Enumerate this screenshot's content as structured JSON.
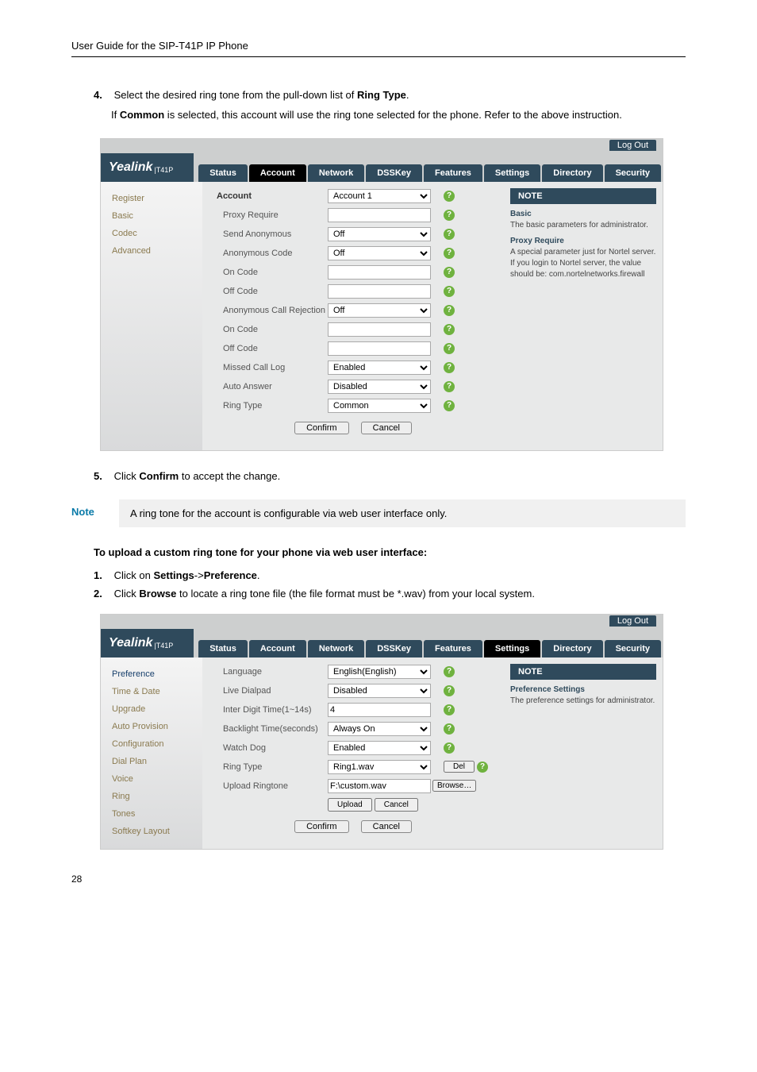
{
  "header": {
    "title": "User Guide for the SIP-T41P IP Phone"
  },
  "steps_a": {
    "s4_num": "4.",
    "s4": "Select the desired ring tone from the pull-down list of ",
    "s4_bold": "Ring Type",
    "s4_end": ".",
    "s4_sub1": "If ",
    "s4_sub1_b": "Common",
    "s4_sub1_end": " is selected, this account will use the ring tone selected for the phone. Refer to the above instruction."
  },
  "ss1": {
    "logout": "Log Out",
    "brand": "Yealink",
    "model": "T41P",
    "tabs": {
      "status": "Status",
      "account": "Account",
      "network": "Network",
      "dsskey": "DSSKey",
      "features": "Features",
      "settings": "Settings",
      "directory": "Directory",
      "security": "Security"
    },
    "side": {
      "register": "Register",
      "basic": "Basic",
      "codec": "Codec",
      "advanced": "Advanced"
    },
    "rows": {
      "account_lbl": "Account",
      "account_val": "Account 1",
      "proxy": "Proxy Require",
      "sendanon": "Send Anonymous",
      "off": "Off",
      "anoncode": "Anonymous Code",
      "oncode": "On Code",
      "offcode": "Off Code",
      "anonrej": "Anonymous Call Rejection",
      "missed": "Missed Call Log",
      "enabled": "Enabled",
      "autoans": "Auto Answer",
      "disabled": "Disabled",
      "ringtype": "Ring Type",
      "common": "Common"
    },
    "btns": {
      "confirm": "Confirm",
      "cancel": "Cancel"
    },
    "note": {
      "hd": "NOTE",
      "basic_t": "Basic",
      "basic_b": "The basic parameters for administrator.",
      "proxy_t": "Proxy Require",
      "proxy_b": "A special parameter just for Nortel server. If you login to Nortel server, the value should be: com.nortelnetworks.firewall"
    }
  },
  "steps_b": {
    "s5_num": "5.",
    "s5a": "Click ",
    "s5b": "Confirm",
    "s5c": " to accept the change."
  },
  "notebox": {
    "label": "Note",
    "text": "A ring tone for the account is configurable via web user interface only."
  },
  "upload_h": "To upload a custom ring tone for your phone via web user interface:",
  "steps_c": {
    "s1_num": "1.",
    "s1a": "Click on ",
    "s1b": "Settings",
    "s1c": "->",
    "s1d": "Preference",
    "s1e": ".",
    "s2_num": "2.",
    "s2a": "Click ",
    "s2b": "Browse",
    "s2c": " to locate a ring tone file (the file format must be *.wav) from your local system."
  },
  "ss2": {
    "side": {
      "pref": "Preference",
      "time": "Time & Date",
      "upgrade": "Upgrade",
      "autoprov": "Auto Provision",
      "config": "Configuration",
      "dialplan": "Dial Plan",
      "voice": "Voice",
      "ring": "Ring",
      "tones": "Tones",
      "softkey": "Softkey Layout"
    },
    "rows": {
      "lang": "Language",
      "lang_v": "English(English)",
      "live": "Live Dialpad",
      "disabled": "Disabled",
      "inter": "Inter Digit Time(1~14s)",
      "inter_v": "4",
      "back": "Backlight Time(seconds)",
      "always": "Always On",
      "watch": "Watch Dog",
      "enabled": "Enabled",
      "ringtype": "Ring Type",
      "ring_v": "Ring1.wav",
      "uploadrt": "Upload Ringtone",
      "file_v": "F:\\custom.wav",
      "del": "Del",
      "browse": "Browse…",
      "upload": "Upload",
      "cancel": "Cancel"
    },
    "note": {
      "hd": "NOTE",
      "t": "Preference Settings",
      "b": "The preference settings for administrator."
    }
  },
  "page_num": "28"
}
